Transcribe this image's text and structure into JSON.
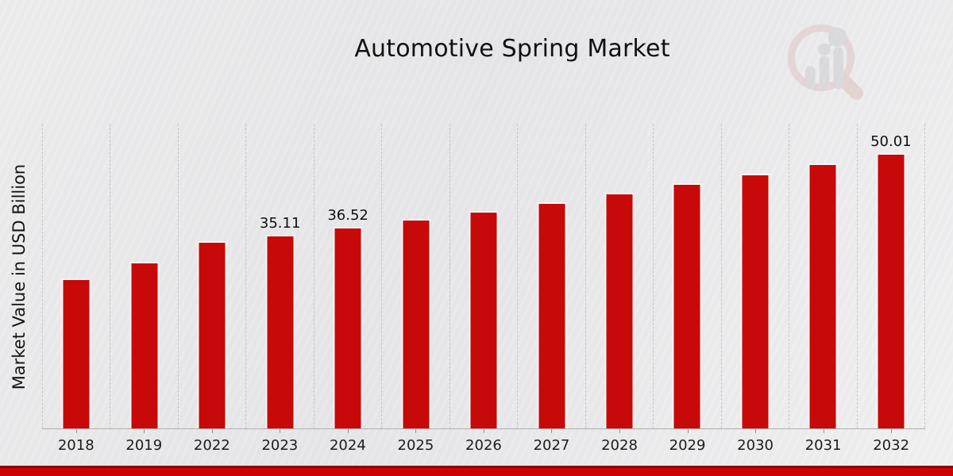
{
  "title": "Automotive Spring Market",
  "y_axis_label": "Market Value in USD Billion",
  "watermark_icon": "market-research-future-magnifier-bar-chart-logo",
  "colors": {
    "bar": "#c70909",
    "bar_edge": "#f6f4f2",
    "banner": "#cb0303",
    "banner_edge": "#8f0202",
    "background": "#eaeaec",
    "gridline": "#c6c6c6",
    "axis_line": "#adadad",
    "text": "#111111"
  },
  "chart_data": {
    "type": "bar",
    "title": "Automotive Spring Market",
    "xlabel": "",
    "ylabel": "Market Value in USD Billion",
    "categories": [
      "2018",
      "2019",
      "2022",
      "2023",
      "2024",
      "2025",
      "2026",
      "2027",
      "2028",
      "2029",
      "2030",
      "2031",
      "2032"
    ],
    "values": [
      27.2,
      30.2,
      34.0,
      35.11,
      36.52,
      37.98,
      39.5,
      41.08,
      42.72,
      44.43,
      46.21,
      48.06,
      50.01
    ],
    "bar_labels": {
      "2023": "35.11",
      "2024": "36.52",
      "2032": "50.01"
    },
    "ylim": [
      0,
      55.3
    ],
    "y_ticks_visible": false,
    "grid": "vertical-dashed",
    "legend": "none",
    "bar_color": "#c70909"
  }
}
